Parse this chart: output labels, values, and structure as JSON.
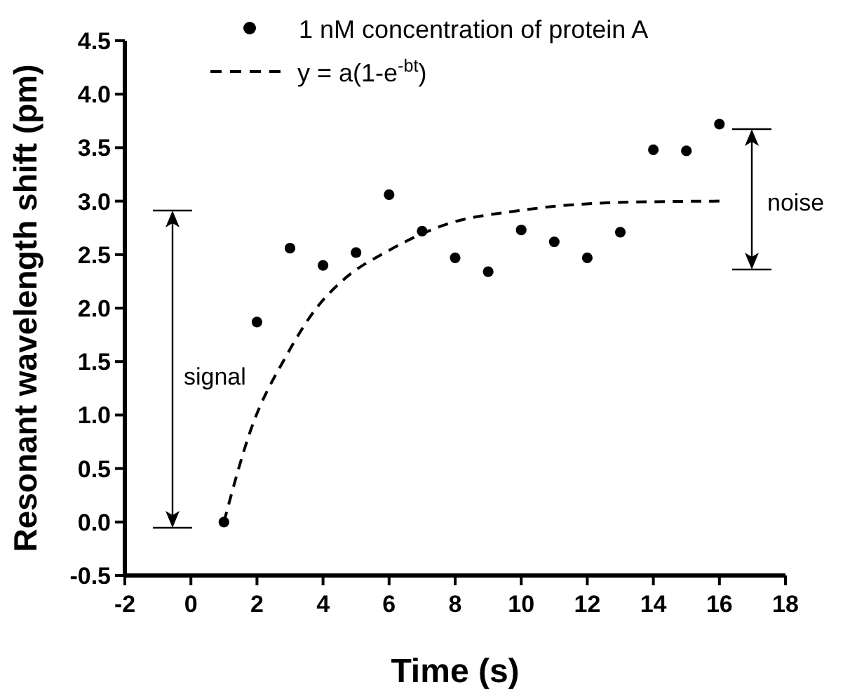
{
  "chart_data": {
    "type": "scatter",
    "xlabel": "Time (s)",
    "ylabel": "Resonant wavelength shift (pm)",
    "xlim": [
      -2,
      18
    ],
    "xticks": [
      -2,
      0,
      2,
      4,
      6,
      8,
      10,
      12,
      14,
      16,
      18
    ],
    "ylim": [
      -0.5,
      4.5
    ],
    "yticks": [
      -0.5,
      {
        "value": 0,
        "label": "0.0"
      },
      0.5,
      {
        "value": 1,
        "label": "1.0"
      },
      1.5,
      {
        "value": 2,
        "label": "2.0"
      },
      2.5,
      {
        "value": 3,
        "label": "3.0"
      },
      3.5,
      {
        "value": 4,
        "label": "4.0"
      },
      4.5
    ],
    "legend": "top",
    "grid": false,
    "series": [
      {
        "name": "1 nM concentration of protein A",
        "marker": "circle",
        "color": "#000000",
        "x": [
          1,
          2,
          3,
          4,
          5,
          6,
          7,
          8,
          9,
          10,
          11,
          12,
          13,
          14,
          15,
          16
        ],
        "values": [
          0,
          1.87,
          2.56,
          2.4,
          2.52,
          3.06,
          2.72,
          2.47,
          2.34,
          2.73,
          2.62,
          2.47,
          2.71,
          3.48,
          3.47,
          3.72
        ]
      },
      {
        "name": "y = a(1-e$^{-bt}$)",
        "type": "line",
        "line_style": "dashed",
        "color": "#000000",
        "x": [
          1,
          1.8,
          2.9,
          3.8,
          4.6,
          6,
          7.7,
          9.9,
          13.2,
          16
        ],
        "values": [
          0,
          0.85,
          1.56,
          2.0,
          2.26,
          2.54,
          2.78,
          2.91,
          2.99,
          3.0
        ]
      }
    ],
    "annotations": [
      "signal",
      "noise"
    ]
  }
}
